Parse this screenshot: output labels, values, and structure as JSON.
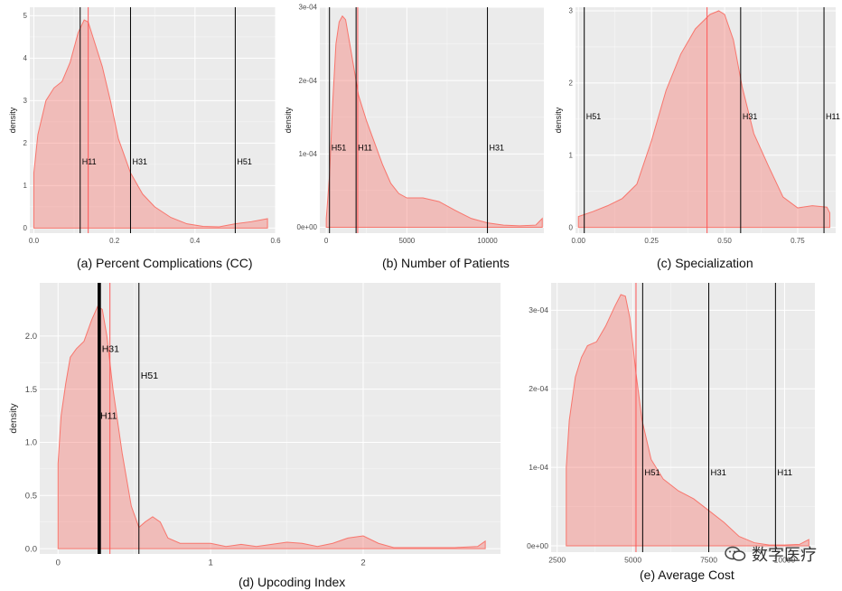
{
  "colors": {
    "panel_bg": "#ebebeb",
    "grid": "#ffffff",
    "fill": "#f8766d",
    "fill_opacity": 0.4,
    "mean_line": "#ff5555",
    "ref_line": "#000000",
    "axis_text": "#4d4d4d"
  },
  "watermark": {
    "text": "数字医疗",
    "icon": "wechat-logo-icon"
  },
  "chart_data": [
    {
      "id": "a",
      "type": "area",
      "caption": "(a) Percent Complications (CC)",
      "ylabel": "density",
      "xlim": [
        -0.01,
        0.6
      ],
      "ylim": [
        -0.12,
        5.2
      ],
      "xticks": [
        0,
        0.2,
        0.4,
        0.6
      ],
      "xtick_labels": [
        "0.0",
        "0.2",
        "0.4",
        "0.6"
      ],
      "yticks": [
        0,
        1,
        2,
        3,
        4,
        5
      ],
      "ytick_labels": [
        "0",
        "1",
        "2",
        "3",
        "4",
        "5"
      ],
      "density": {
        "x": [
          0,
          0.01,
          0.03,
          0.05,
          0.07,
          0.09,
          0.11,
          0.125,
          0.135,
          0.15,
          0.17,
          0.19,
          0.21,
          0.24,
          0.27,
          0.3,
          0.34,
          0.38,
          0.42,
          0.46,
          0.5,
          0.54,
          0.58
        ],
        "y": [
          1.3,
          2.2,
          3.0,
          3.3,
          3.45,
          3.9,
          4.6,
          4.9,
          4.85,
          4.4,
          3.8,
          3.0,
          2.1,
          1.3,
          0.8,
          0.5,
          0.25,
          0.1,
          0.04,
          0.03,
          0.1,
          0.15,
          0.22
        ]
      },
      "mean": 0.135,
      "ref_lines": [
        {
          "label": "H11",
          "x": 0.115,
          "label_y": 1.5
        },
        {
          "label": "H31",
          "x": 0.24,
          "label_y": 1.5
        },
        {
          "label": "H51",
          "x": 0.5,
          "label_y": 1.5
        }
      ]
    },
    {
      "id": "b",
      "type": "area",
      "caption": "(b) Number of Patients",
      "ylabel": "density",
      "xlim": [
        -400,
        13500
      ],
      "ylim": [
        -8e-06,
        0.0003
      ],
      "xticks": [
        0,
        5000,
        10000
      ],
      "xtick_labels": [
        "0",
        "5000",
        "10000"
      ],
      "yticks": [
        0,
        0.0001,
        0.0002,
        0.0003
      ],
      "ytick_labels": [
        "0e+00",
        "1e-04",
        "2e-04",
        "3e-04"
      ],
      "density": {
        "x": [
          0,
          200,
          400,
          600,
          800,
          1000,
          1200,
          1500,
          2000,
          2500,
          3000,
          3500,
          4000,
          4500,
          5000,
          6000,
          7000,
          8000,
          9000,
          10000,
          11000,
          12000,
          13000,
          13400
        ],
        "y": [
          1.2e-05,
          7e-05,
          0.00017,
          0.00025,
          0.00028,
          0.000288,
          0.000283,
          0.000245,
          0.00018,
          0.000145,
          0.000115,
          8.5e-05,
          6e-05,
          4.6e-05,
          4e-05,
          4e-05,
          3.5e-05,
          2.3e-05,
          1.2e-05,
          6e-06,
          3e-06,
          2e-06,
          3e-06,
          1.2e-05
        ]
      },
      "mean": 1950,
      "ref_lines": [
        {
          "label": "H51",
          "x": 200,
          "label_y": 0.000105
        },
        {
          "label": "H11",
          "x": 1850,
          "label_y": 0.000105
        },
        {
          "label": "H31",
          "x": 10000,
          "label_y": 0.000105
        }
      ]
    },
    {
      "id": "c",
      "type": "area",
      "caption": "(c) Specialization",
      "ylabel": "density",
      "xlim": [
        -0.01,
        0.88
      ],
      "ylim": [
        -0.08,
        3.05
      ],
      "xticks": [
        0,
        0.25,
        0.5,
        0.75
      ],
      "xtick_labels": [
        "0.00",
        "0.25",
        "0.50",
        "0.75"
      ],
      "yticks": [
        0,
        1,
        2,
        3
      ],
      "ytick_labels": [
        "0",
        "1",
        "2",
        "3"
      ],
      "density": {
        "x": [
          0,
          0.05,
          0.1,
          0.15,
          0.2,
          0.25,
          0.3,
          0.35,
          0.4,
          0.45,
          0.48,
          0.5,
          0.53,
          0.56,
          0.6,
          0.65,
          0.7,
          0.75,
          0.8,
          0.85,
          0.86
        ],
        "y": [
          0.15,
          0.22,
          0.3,
          0.4,
          0.6,
          1.2,
          1.9,
          2.4,
          2.75,
          2.95,
          3.0,
          2.95,
          2.6,
          1.95,
          1.3,
          0.85,
          0.42,
          0.27,
          0.3,
          0.28,
          0.2
        ]
      },
      "mean": 0.44,
      "ref_lines": [
        {
          "label": "H51",
          "x": 0.02,
          "label_y": 1.5
        },
        {
          "label": "H31",
          "x": 0.555,
          "label_y": 1.5
        },
        {
          "label": "H11",
          "x": 0.84,
          "label_y": 1.5
        }
      ]
    },
    {
      "id": "d",
      "type": "area",
      "caption": "(d) Upcoding Index",
      "ylabel": "density",
      "xlim": [
        -0.12,
        2.9
      ],
      "ylim": [
        -0.05,
        2.5
      ],
      "xticks": [
        0,
        1,
        2
      ],
      "xtick_labels": [
        "0",
        "1",
        "2"
      ],
      "yticks": [
        0,
        0.5,
        1.0,
        1.5,
        2.0
      ],
      "ytick_labels": [
        "0.0",
        "0.5",
        "1.0",
        "1.5",
        "2.0"
      ],
      "density": {
        "x": [
          0,
          0.02,
          0.05,
          0.08,
          0.12,
          0.17,
          0.22,
          0.26,
          0.29,
          0.32,
          0.36,
          0.42,
          0.48,
          0.53,
          0.57,
          0.62,
          0.67,
          0.72,
          0.8,
          0.9,
          1.0,
          1.1,
          1.2,
          1.3,
          1.4,
          1.5,
          1.6,
          1.7,
          1.8,
          1.9,
          2.0,
          2.1,
          2.2,
          2.4,
          2.6,
          2.75,
          2.8
        ],
        "y": [
          0.8,
          1.25,
          1.55,
          1.8,
          1.88,
          1.95,
          2.15,
          2.28,
          2.25,
          2.0,
          1.5,
          0.9,
          0.4,
          0.2,
          0.25,
          0.3,
          0.25,
          0.1,
          0.05,
          0.05,
          0.05,
          0.02,
          0.04,
          0.02,
          0.04,
          0.06,
          0.05,
          0.02,
          0.05,
          0.1,
          0.12,
          0.05,
          0.01,
          0.01,
          0.01,
          0.02,
          0.07
        ]
      },
      "mean": 0.34,
      "ref_lines": [
        {
          "label": "H11",
          "x": 0.265,
          "label_y": 1.22,
          "bold": true
        },
        {
          "label": "H31",
          "x": 0.275,
          "label_y": 1.85,
          "bold": true
        },
        {
          "label": "H51",
          "x": 0.53,
          "label_y": 1.6
        }
      ]
    },
    {
      "id": "e",
      "type": "area",
      "caption": "(e) Average Cost",
      "ylabel": "",
      "xlim": [
        2300,
        11000
      ],
      "ylim": [
        -8e-06,
        0.000335
      ],
      "xticks": [
        2500,
        5000,
        7500,
        10000
      ],
      "xtick_labels": [
        "2500",
        "5000",
        "7500",
        "10000"
      ],
      "yticks": [
        0,
        0.0001,
        0.0002,
        0.0003
      ],
      "ytick_labels": [
        "0e+00",
        "1e-04",
        "2e-04",
        "3e-04"
      ],
      "density": {
        "x": [
          2800,
          2900,
          3100,
          3300,
          3500,
          3800,
          4100,
          4400,
          4600,
          4750,
          4900,
          5100,
          5300,
          5600,
          6000,
          6500,
          7000,
          7500,
          8000,
          8500,
          9000,
          9500,
          10000,
          10500,
          10800
        ],
        "y": [
          0.0001,
          0.00016,
          0.000215,
          0.00024,
          0.000255,
          0.00026,
          0.00028,
          0.000305,
          0.00032,
          0.000318,
          0.00029,
          0.00022,
          0.00016,
          0.00011,
          8.5e-05,
          7e-05,
          6e-05,
          4.5e-05,
          3e-05,
          1.2e-05,
          4e-06,
          1e-06,
          1e-06,
          2e-06,
          8e-06
        ]
      },
      "mean": 5100,
      "ref_lines": [
        {
          "label": "H51",
          "x": 5320,
          "label_y": 9e-05
        },
        {
          "label": "H31",
          "x": 7500,
          "label_y": 9e-05
        },
        {
          "label": "H11",
          "x": 9700,
          "label_y": 9e-05
        }
      ]
    }
  ]
}
